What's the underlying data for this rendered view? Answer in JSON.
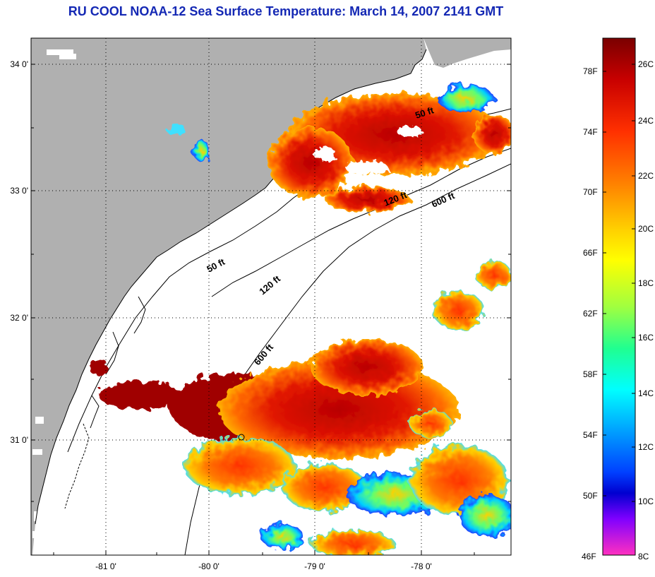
{
  "title": "RU COOL  NOAA-12  Sea Surface Temperature:  March 14, 2007 2141 GMT",
  "map": {
    "lat_ticks": [
      "34 0'",
      "33 0'",
      "32 0'",
      "31 0'"
    ],
    "lon_ticks": [
      "-81 0'",
      "-80 0'",
      "-79 0'",
      "-78 0'"
    ],
    "depth_labels": [
      "50 ft",
      "120 ft",
      "600 ft",
      "50 ft",
      "120 ft",
      "600 ft"
    ],
    "colors": {
      "land": "#b0b0b0",
      "water": "#ffffff",
      "gridline": "#000000"
    }
  },
  "colorbar": {
    "fahrenheit_labels": [
      "78F",
      "74F",
      "70F",
      "66F",
      "62F",
      "58F",
      "54F",
      "50F",
      "46F"
    ],
    "celsius_labels": [
      "26C",
      "24C",
      "22C",
      "20C",
      "18C",
      "16C",
      "14C",
      "12C",
      "10C",
      "8C"
    ],
    "gradient": [
      "#7a0000",
      "#c80000",
      "#ff3000",
      "#ff8000",
      "#ffd000",
      "#ffff00",
      "#a0ff40",
      "#20ff90",
      "#00ffff",
      "#00a0ff",
      "#0040ff",
      "#0000d0",
      "#8000ff",
      "#ff30c0"
    ]
  }
}
